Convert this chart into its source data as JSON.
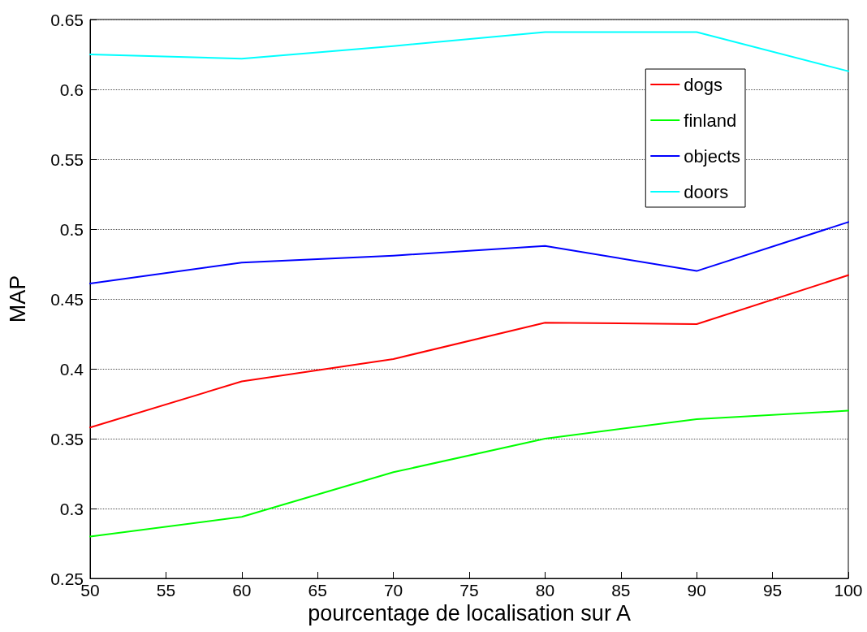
{
  "chart_data": {
    "type": "line",
    "xlabel": "pourcentage de localisation sur A",
    "ylabel": "MAP",
    "x": [
      50,
      60,
      70,
      80,
      90,
      100
    ],
    "series": [
      {
        "name": "dogs",
        "color": "#ff0000",
        "values": [
          0.358,
          0.391,
          0.407,
          0.433,
          0.432,
          0.467
        ]
      },
      {
        "name": "finland",
        "color": "#00ff00",
        "values": [
          0.28,
          0.294,
          0.326,
          0.35,
          0.364,
          0.37
        ]
      },
      {
        "name": "objects",
        "color": "#0000ff",
        "values": [
          0.461,
          0.476,
          0.481,
          0.488,
          0.47,
          0.505
        ]
      },
      {
        "name": "doors",
        "color": "#00ffff",
        "values": [
          0.625,
          0.622,
          0.631,
          0.641,
          0.641,
          0.613
        ]
      }
    ],
    "xlim": [
      50,
      100
    ],
    "xticks": [
      50,
      55,
      60,
      65,
      70,
      75,
      80,
      85,
      90,
      95,
      100
    ],
    "ylim": [
      0.25,
      0.65
    ],
    "yticks": [
      0.25,
      0.3,
      0.35,
      0.4,
      0.45,
      0.5,
      0.55,
      0.6,
      0.65
    ],
    "grid": "y",
    "legend": "top right",
    "marker": "none",
    "line_style": "solid"
  }
}
